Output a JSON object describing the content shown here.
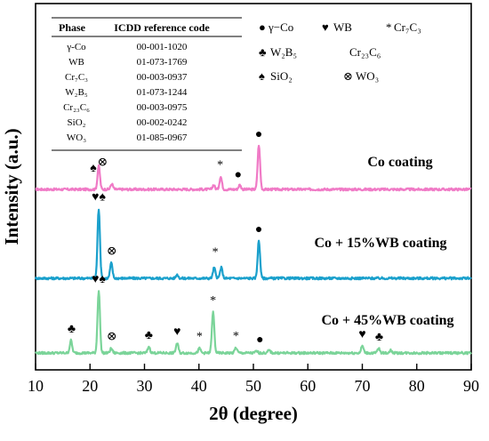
{
  "chart_data": {
    "type": "line",
    "xlabel": "2θ (degree)",
    "ylabel": "Intensity (a.u.)",
    "xlim": [
      10,
      90
    ],
    "xticks": [
      "10",
      "20",
      "30",
      "40",
      "50",
      "60",
      "70",
      "80",
      "90"
    ],
    "grid": false,
    "reference_table": {
      "header": [
        "Phase",
        "ICDD reference code"
      ],
      "rows": [
        [
          "γ-Co",
          "00-001-1020"
        ],
        [
          "WB",
          "01-073-1769"
        ],
        [
          "Cr₇C₃",
          "00-003-0937"
        ],
        [
          "W₂B₅",
          "01-073-1244"
        ],
        [
          "Cr₂₃C₆",
          "00-003-0975"
        ],
        [
          "SiO₂",
          "00-002-0242"
        ],
        [
          "WO₃",
          "01-085-0967"
        ]
      ]
    },
    "legend": {
      "placement": "top-right",
      "entries": [
        {
          "symbol": "●",
          "label": "γ−Co"
        },
        {
          "symbol": "♥",
          "label": "WB"
        },
        {
          "symbol": "*",
          "label": "Cr₇C₃"
        },
        {
          "symbol": "♣",
          "label": "W₂B₅"
        },
        {
          "symbol": "",
          "label": "Cr₂₃C₆"
        },
        {
          "symbol": "♠",
          "label": "SiO₂"
        },
        {
          "symbol": "⊗",
          "label": "WO₃"
        }
      ]
    },
    "series": [
      {
        "name": "Co coating",
        "color": "#f07ac6",
        "peaks": [
          [
            21.6,
            26
          ],
          [
            24.0,
            6
          ],
          [
            42.7,
            5
          ],
          [
            44.0,
            14
          ],
          [
            47.5,
            5
          ],
          [
            51.0,
            50
          ]
        ],
        "markers": [
          {
            "symbol": "♠",
            "x": 20.6
          },
          {
            "symbol": "⊗",
            "x": 22.3
          },
          {
            "symbol": "*",
            "x": 43.9
          },
          {
            "symbol": "●",
            "x": 47.2
          },
          {
            "symbol": "●",
            "x": 51.0
          }
        ]
      },
      {
        "name": "Co + 15%WB coating",
        "color": "#1aa0cc",
        "peaks": [
          [
            21.6,
            78
          ],
          [
            23.9,
            17
          ],
          [
            36.0,
            4
          ],
          [
            42.8,
            12
          ],
          [
            44.1,
            12
          ],
          [
            51.0,
            42
          ]
        ],
        "markers": [
          {
            "symbol": "♥♠",
            "x": 21.6
          },
          {
            "symbol": "⊗",
            "x": 24.0
          },
          {
            "symbol": "*",
            "x": 43.0
          },
          {
            "symbol": "●",
            "x": 51.0
          }
        ]
      },
      {
        "name": "Co + 45%WB coating",
        "color": "#7bd499",
        "peaks": [
          [
            16.5,
            14
          ],
          [
            21.6,
            70
          ],
          [
            23.9,
            5
          ],
          [
            30.8,
            7
          ],
          [
            36.0,
            11
          ],
          [
            40.1,
            5
          ],
          [
            42.6,
            46
          ],
          [
            46.8,
            6
          ],
          [
            50.6,
            2
          ],
          [
            52.9,
            3
          ],
          [
            70.0,
            8
          ],
          [
            73.0,
            5
          ],
          [
            75.2,
            3
          ]
        ],
        "markers": [
          {
            "symbol": "♣",
            "x": 16.6
          },
          {
            "symbol": "♥♠",
            "x": 21.6
          },
          {
            "symbol": "⊗",
            "x": 24.0
          },
          {
            "symbol": "♣",
            "x": 30.8
          },
          {
            "symbol": "♥",
            "x": 36.0
          },
          {
            "symbol": "*",
            "x": 40.1
          },
          {
            "symbol": "*",
            "x": 42.6
          },
          {
            "symbol": "*",
            "x": 46.8
          },
          {
            "symbol": "●",
            "x": 51.2
          },
          {
            "symbol": "♥",
            "x": 70.0
          },
          {
            "symbol": "♣",
            "x": 73.1
          }
        ]
      }
    ]
  }
}
